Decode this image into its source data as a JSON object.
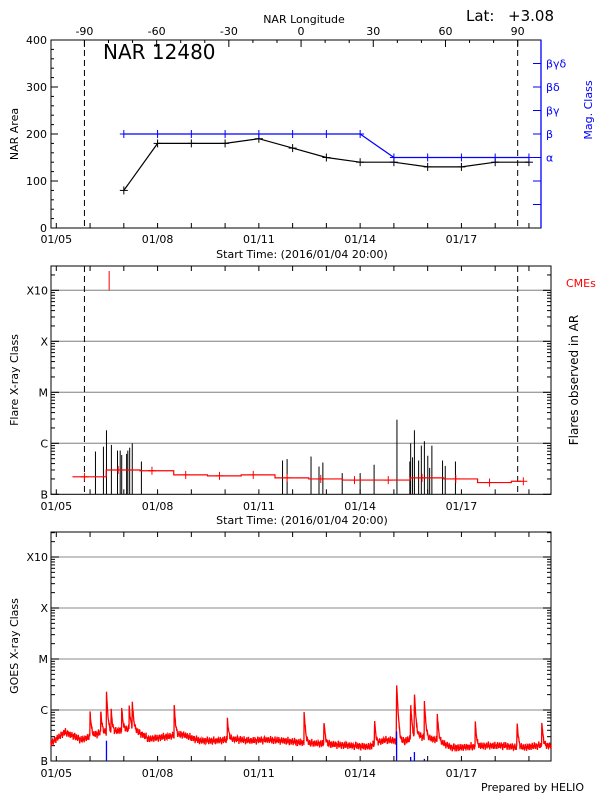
{
  "header": {
    "lat_label": "Lat:",
    "lat_value": "+3.08"
  },
  "footer": {
    "credit": "Prepared by HELIO"
  },
  "colors": {
    "area": "#000000",
    "mag_class": "#0000ff",
    "flare_background": "#ff0000",
    "cme": "#ff0000",
    "goes": "#ff0000",
    "goes_markers": "#0000ff",
    "grid": "#a0a0a0"
  },
  "chart_data": [
    {
      "type": "line",
      "title": "NAR 12480",
      "ylabel": "NAR Area",
      "y2label": "Mag. Class",
      "xlabel": "Start Time: (2016/01/04 20:00)",
      "ylim": [
        0,
        400
      ],
      "yticks": [
        0,
        100,
        200,
        300,
        400
      ],
      "x_ticks": [
        {
          "time": "2016-01-05T00:00",
          "label": "01/05"
        },
        {
          "time": "2016-01-08T00:00",
          "label": "01/08"
        },
        {
          "time": "2016-01-11T00:00",
          "label": "01/11"
        },
        {
          "time": "2016-01-14T00:00",
          "label": "01/14"
        },
        {
          "time": "2016-01-17T00:00",
          "label": "01/17"
        }
      ],
      "top_axis": {
        "label": "NAR Longitude",
        "ticks": [
          -90,
          -60,
          -30,
          0,
          30,
          60,
          90
        ],
        "limb_times": [
          "2016-01-05T20:00",
          "2016-01-18T16:00"
        ]
      },
      "y2lim": [
        0,
        8
      ],
      "y2_classes": [
        {
          "level": 1,
          "label": ""
        },
        {
          "level": 2,
          "label": ""
        },
        {
          "level": 3,
          "label": "α"
        },
        {
          "level": 4,
          "label": "β"
        },
        {
          "level": 5,
          "label": "βγ"
        },
        {
          "level": 6,
          "label": "βδ"
        },
        {
          "level": 7,
          "label": "βγδ"
        }
      ],
      "area": {
        "x": [
          "2016-01-07T00:00",
          "2016-01-08T00:00",
          "2016-01-09T00:00",
          "2016-01-10T00:00",
          "2016-01-11T00:00",
          "2016-01-12T00:00",
          "2016-01-13T00:00",
          "2016-01-14T00:00",
          "2016-01-15T00:00",
          "2016-01-16T00:00",
          "2016-01-17T00:00",
          "2016-01-18T00:00",
          "2016-01-19T00:00"
        ],
        "y": [
          80,
          180,
          180,
          180,
          190,
          170,
          150,
          140,
          140,
          130,
          130,
          140,
          140
        ]
      },
      "mag_class": {
        "x": [
          "2016-01-07T00:00",
          "2016-01-08T00:00",
          "2016-01-09T00:00",
          "2016-01-10T00:00",
          "2016-01-11T00:00",
          "2016-01-12T00:00",
          "2016-01-13T00:00",
          "2016-01-14T00:00",
          "2016-01-15T00:00",
          "2016-01-16T00:00",
          "2016-01-17T00:00",
          "2016-01-18T00:00",
          "2016-01-19T00:00"
        ],
        "level": [
          4,
          4,
          4,
          4,
          4,
          4,
          4,
          4,
          3,
          3,
          3,
          3,
          3
        ]
      }
    },
    {
      "type": "bar",
      "ylabel": "Flare X-ray Class",
      "y2label": "Flares observed in AR",
      "legend": "CMEs",
      "xlabel": "Start Time: (2016/01/04 20:00)",
      "y_scale": "log",
      "y_class_ticks": [
        "B",
        "C",
        "M",
        "X",
        "X10"
      ],
      "grid": true,
      "flares": [
        {
          "time": "2016-01-06T03:50",
          "class": "B6.9"
        },
        {
          "time": "2016-01-06T09:30",
          "class": "B8.6"
        },
        {
          "time": "2016-01-06T11:40",
          "class": "C1.8"
        },
        {
          "time": "2016-01-06T15:10",
          "class": "B9.3"
        },
        {
          "time": "2016-01-06T19:30",
          "class": "B7.2"
        },
        {
          "time": "2016-01-06T21:25",
          "class": "B7.2"
        },
        {
          "time": "2016-01-06T22:30",
          "class": "B5.9"
        },
        {
          "time": "2016-01-07T02:00",
          "class": "B6.2"
        },
        {
          "time": "2016-01-07T02:50",
          "class": "B7.2"
        },
        {
          "time": "2016-01-07T04:10",
          "class": "B8.2"
        },
        {
          "time": "2016-01-07T06:00",
          "class": "C1.0"
        },
        {
          "time": "2016-01-07T12:30",
          "class": "B4.4"
        },
        {
          "time": "2016-01-11T16:50",
          "class": "B4.6"
        },
        {
          "time": "2016-01-11T20:05",
          "class": "B4.9"
        },
        {
          "time": "2016-01-12T13:05",
          "class": "B5.5"
        },
        {
          "time": "2016-01-12T18:45",
          "class": "B3.5"
        },
        {
          "time": "2016-01-12T21:30",
          "class": "B4.2"
        },
        {
          "time": "2016-01-13T11:15",
          "class": "B2.6"
        },
        {
          "time": "2016-01-14T00:00",
          "class": "B2.6"
        },
        {
          "time": "2016-01-14T09:55",
          "class": "B3.8"
        },
        {
          "time": "2016-01-15T02:10",
          "class": "C2.9"
        },
        {
          "time": "2016-01-15T11:20",
          "class": "B4.4"
        },
        {
          "time": "2016-01-15T11:55",
          "class": "C1.0"
        },
        {
          "time": "2016-01-15T13:15",
          "class": "B5.3"
        },
        {
          "time": "2016-01-15T14:35",
          "class": "C1.8"
        },
        {
          "time": "2016-01-15T17:35",
          "class": "B4.6"
        },
        {
          "time": "2016-01-15T19:30",
          "class": "B9.0"
        },
        {
          "time": "2016-01-15T21:40",
          "class": "C1.1"
        },
        {
          "time": "2016-01-16T00:05",
          "class": "B5.7"
        },
        {
          "time": "2016-01-16T01:25",
          "class": "B3.3"
        },
        {
          "time": "2016-01-16T03:00",
          "class": "B9.0"
        },
        {
          "time": "2016-01-16T10:35",
          "class": "B4.6"
        },
        {
          "time": "2016-01-16T12:30",
          "class": "B3.6"
        },
        {
          "time": "2016-01-16T19:45",
          "class": "B4.4"
        }
      ],
      "background": [
        {
          "time": "2016-01-05T20:00",
          "class": "B2.2"
        },
        {
          "time": "2016-01-06T20:00",
          "class": "B3.0"
        },
        {
          "time": "2016-01-07T20:00",
          "class": "B2.9"
        },
        {
          "time": "2016-01-08T20:00",
          "class": "B2.4"
        },
        {
          "time": "2016-01-09T20:00",
          "class": "B2.3"
        },
        {
          "time": "2016-01-10T20:00",
          "class": "B2.4"
        },
        {
          "time": "2016-01-11T20:00",
          "class": "B2.1"
        },
        {
          "time": "2016-01-12T20:00",
          "class": "B2.0"
        },
        {
          "time": "2016-01-13T20:00",
          "class": "B1.9"
        },
        {
          "time": "2016-01-14T20:00",
          "class": "B1.9"
        },
        {
          "time": "2016-01-15T20:00",
          "class": "B2.1"
        },
        {
          "time": "2016-01-16T20:00",
          "class": "B2.0"
        },
        {
          "time": "2016-01-17T20:00",
          "class": "B1.7"
        },
        {
          "time": "2016-01-18T20:00",
          "class": "B1.8"
        }
      ],
      "cmes": [
        {
          "time": "2016-01-06T13:35"
        }
      ]
    },
    {
      "type": "line",
      "ylabel": "GOES X-ray Class",
      "y_scale": "log",
      "y_class_ticks": [
        "B",
        "C",
        "M",
        "X",
        "X10"
      ],
      "grid": true,
      "baseline": [
        {
          "time": "2016-01-04T20:00",
          "class": "B2.2"
        },
        {
          "time": "2016-01-05T06:00",
          "class": "B3.7"
        },
        {
          "time": "2016-01-05T18:00",
          "class": "B2.6"
        },
        {
          "time": "2016-01-06T06:00",
          "class": "B3.5"
        },
        {
          "time": "2016-01-06T18:00",
          "class": "B3.8"
        },
        {
          "time": "2016-01-07T06:00",
          "class": "B4.4"
        },
        {
          "time": "2016-01-07T18:00",
          "class": "B2.7"
        },
        {
          "time": "2016-01-08T06:00",
          "class": "B3.0"
        },
        {
          "time": "2016-01-08T18:00",
          "class": "B3.3"
        },
        {
          "time": "2016-01-09T06:00",
          "class": "B2.5"
        },
        {
          "time": "2016-01-09T18:00",
          "class": "B2.5"
        },
        {
          "time": "2016-01-10T06:00",
          "class": "B2.7"
        },
        {
          "time": "2016-01-10T18:00",
          "class": "B2.5"
        },
        {
          "time": "2016-01-11T06:00",
          "class": "B2.6"
        },
        {
          "time": "2016-01-11T18:00",
          "class": "B2.5"
        },
        {
          "time": "2016-01-12T06:00",
          "class": "B2.3"
        },
        {
          "time": "2016-01-12T18:00",
          "class": "B2.2"
        },
        {
          "time": "2016-01-13T06:00",
          "class": "B2.1"
        },
        {
          "time": "2016-01-13T18:00",
          "class": "B2.0"
        },
        {
          "time": "2016-01-14T06:00",
          "class": "B1.9"
        },
        {
          "time": "2016-01-14T18:00",
          "class": "B2.6"
        },
        {
          "time": "2016-01-15T06:00",
          "class": "B2.4"
        },
        {
          "time": "2016-01-15T18:00",
          "class": "B3.1"
        },
        {
          "time": "2016-01-16T06:00",
          "class": "B2.6"
        },
        {
          "time": "2016-01-16T18:00",
          "class": "B1.8"
        },
        {
          "time": "2016-01-17T06:00",
          "class": "B1.9"
        },
        {
          "time": "2016-01-17T18:00",
          "class": "B2.0"
        },
        {
          "time": "2016-01-18T06:00",
          "class": "B2.0"
        },
        {
          "time": "2016-01-18T18:00",
          "class": "B1.8"
        },
        {
          "time": "2016-01-19T06:00",
          "class": "B2.0"
        },
        {
          "time": "2016-01-19T16:00",
          "class": "B2.0"
        }
      ],
      "peaks": [
        {
          "time": "2016-01-06T00:00",
          "class": "B6.4"
        },
        {
          "time": "2016-01-06T07:40",
          "class": "B6.0"
        },
        {
          "time": "2016-01-06T11:40",
          "class": "C1.9"
        },
        {
          "time": "2016-01-06T15:00",
          "class": "B6.4"
        },
        {
          "time": "2016-01-06T22:30",
          "class": "B7.0"
        },
        {
          "time": "2016-01-07T03:50",
          "class": "B8.0"
        },
        {
          "time": "2016-01-07T06:00",
          "class": "C1.0"
        },
        {
          "time": "2016-01-08T11:50",
          "class": "B9.0"
        },
        {
          "time": "2016-01-10T01:40",
          "class": "B4.2"
        },
        {
          "time": "2016-01-12T08:10",
          "class": "B7.1"
        },
        {
          "time": "2016-01-12T22:15",
          "class": "B4.2"
        },
        {
          "time": "2016-01-14T10:15",
          "class": "B4.3"
        },
        {
          "time": "2016-01-15T01:55",
          "class": "C3.1"
        },
        {
          "time": "2016-01-15T11:55",
          "class": "C1.1"
        },
        {
          "time": "2016-01-15T14:35",
          "class": "C1.9"
        },
        {
          "time": "2016-01-15T21:40",
          "class": "C1.2"
        },
        {
          "time": "2016-01-16T06:50",
          "class": "B6.0"
        },
        {
          "time": "2016-01-17T09:50",
          "class": "B4.0"
        },
        {
          "time": "2016-01-18T15:35",
          "class": "B4.1"
        },
        {
          "time": "2016-01-19T09:10",
          "class": "B3.8"
        }
      ],
      "blue_markers": [
        {
          "time": "2016-01-06T11:40",
          "class": "B2.5"
        },
        {
          "time": "2016-01-15T01:55",
          "class": "B3.8"
        },
        {
          "time": "2016-01-15T11:55",
          "class": "B1.2"
        },
        {
          "time": "2016-01-15T14:35",
          "class": "B1.5"
        },
        {
          "time": "2016-01-15T21:40",
          "class": "B1.1"
        }
      ]
    }
  ]
}
